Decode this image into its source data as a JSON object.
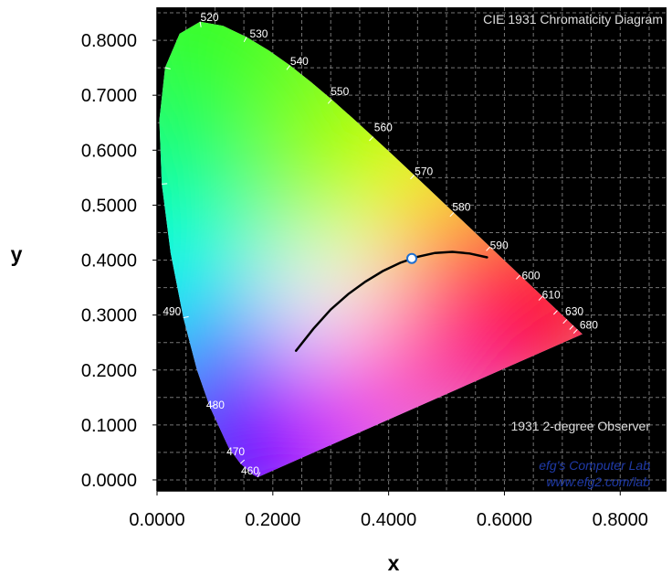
{
  "chart_data": {
    "type": "scatter",
    "title": "CIE 1931 Chromaticity Diagram",
    "subtitle": "1931 2-degree Observer",
    "xlabel": "x",
    "ylabel": "y",
    "xlim": [
      0,
      0.88
    ],
    "ylim": [
      -0.02,
      0.86
    ],
    "x_ticks": [
      "0.0000",
      "0.2000",
      "0.4000",
      "0.6000",
      "0.8000"
    ],
    "y_ticks": [
      "0.0000",
      "0.1000",
      "0.2000",
      "0.3000",
      "0.4000",
      "0.5000",
      "0.6000",
      "0.7000",
      "0.8000"
    ],
    "grid": true,
    "background": "#000000",
    "wavelength_labels": [
      {
        "text": "460",
        "x": 0.145,
        "y": 0.01
      },
      {
        "text": "470",
        "x": 0.12,
        "y": 0.045
      },
      {
        "text": "480",
        "x": 0.085,
        "y": 0.13
      },
      {
        "text": "490",
        "x": 0.01,
        "y": 0.3
      },
      {
        "text": "520",
        "x": 0.075,
        "y": 0.835
      },
      {
        "text": "530",
        "x": 0.16,
        "y": 0.805
      },
      {
        "text": "540",
        "x": 0.23,
        "y": 0.755
      },
      {
        "text": "550",
        "x": 0.3,
        "y": 0.7
      },
      {
        "text": "560",
        "x": 0.375,
        "y": 0.635
      },
      {
        "text": "570",
        "x": 0.445,
        "y": 0.555
      },
      {
        "text": "580",
        "x": 0.51,
        "y": 0.49
      },
      {
        "text": "590",
        "x": 0.575,
        "y": 0.42
      },
      {
        "text": "600",
        "x": 0.63,
        "y": 0.365
      },
      {
        "text": "610",
        "x": 0.665,
        "y": 0.33
      },
      {
        "text": "630",
        "x": 0.705,
        "y": 0.3
      },
      {
        "text": "680",
        "x": 0.73,
        "y": 0.275
      }
    ],
    "series": [
      {
        "type": "line",
        "points": [
          [
            0.24,
            0.235
          ],
          [
            0.27,
            0.275
          ],
          [
            0.3,
            0.31
          ],
          [
            0.33,
            0.338
          ],
          [
            0.36,
            0.361
          ],
          [
            0.39,
            0.38
          ],
          [
            0.42,
            0.395
          ],
          [
            0.45,
            0.406
          ],
          [
            0.48,
            0.413
          ],
          [
            0.51,
            0.415
          ],
          [
            0.54,
            0.412
          ],
          [
            0.57,
            0.405
          ]
        ],
        "color": "#000000"
      },
      {
        "type": "point",
        "points": [
          [
            0.44,
            0.403
          ]
        ],
        "color": "#ffffff",
        "stroke": "#1f6fcf"
      }
    ]
  },
  "watermark": {
    "line1": "efg's Computer Lab",
    "line2": "www.efg2.com/lab"
  },
  "colors": {
    "spectral_locus": [
      [
        0.1741,
        0.005
      ],
      [
        0.1738,
        0.0049
      ],
      [
        0.1666,
        0.0089
      ],
      [
        0.144,
        0.0297
      ],
      [
        0.1241,
        0.0578
      ],
      [
        0.0913,
        0.1327
      ],
      [
        0.0687,
        0.2007
      ],
      [
        0.0454,
        0.295
      ],
      [
        0.0235,
        0.4127
      ],
      [
        0.0082,
        0.5384
      ],
      [
        0.0039,
        0.6548
      ],
      [
        0.0139,
        0.7502
      ],
      [
        0.0389,
        0.812
      ],
      [
        0.0743,
        0.8338
      ],
      [
        0.1142,
        0.8262
      ],
      [
        0.1547,
        0.8059
      ],
      [
        0.1929,
        0.7816
      ],
      [
        0.2296,
        0.7543
      ],
      [
        0.2658,
        0.7243
      ],
      [
        0.3016,
        0.6923
      ],
      [
        0.3373,
        0.6589
      ],
      [
        0.3731,
        0.6245
      ],
      [
        0.4087,
        0.5896
      ],
      [
        0.4441,
        0.5547
      ],
      [
        0.4788,
        0.5202
      ],
      [
        0.5125,
        0.4866
      ],
      [
        0.5448,
        0.4544
      ],
      [
        0.5752,
        0.4242
      ],
      [
        0.6029,
        0.3965
      ],
      [
        0.627,
        0.3725
      ],
      [
        0.6482,
        0.3514
      ],
      [
        0.6658,
        0.334
      ],
      [
        0.6801,
        0.3197
      ],
      [
        0.6915,
        0.3083
      ],
      [
        0.7006,
        0.2993
      ],
      [
        0.7079,
        0.292
      ],
      [
        0.714,
        0.2859
      ],
      [
        0.719,
        0.2809
      ],
      [
        0.723,
        0.277
      ],
      [
        0.726,
        0.274
      ],
      [
        0.7283,
        0.2717
      ],
      [
        0.7347,
        0.2653
      ]
    ]
  }
}
